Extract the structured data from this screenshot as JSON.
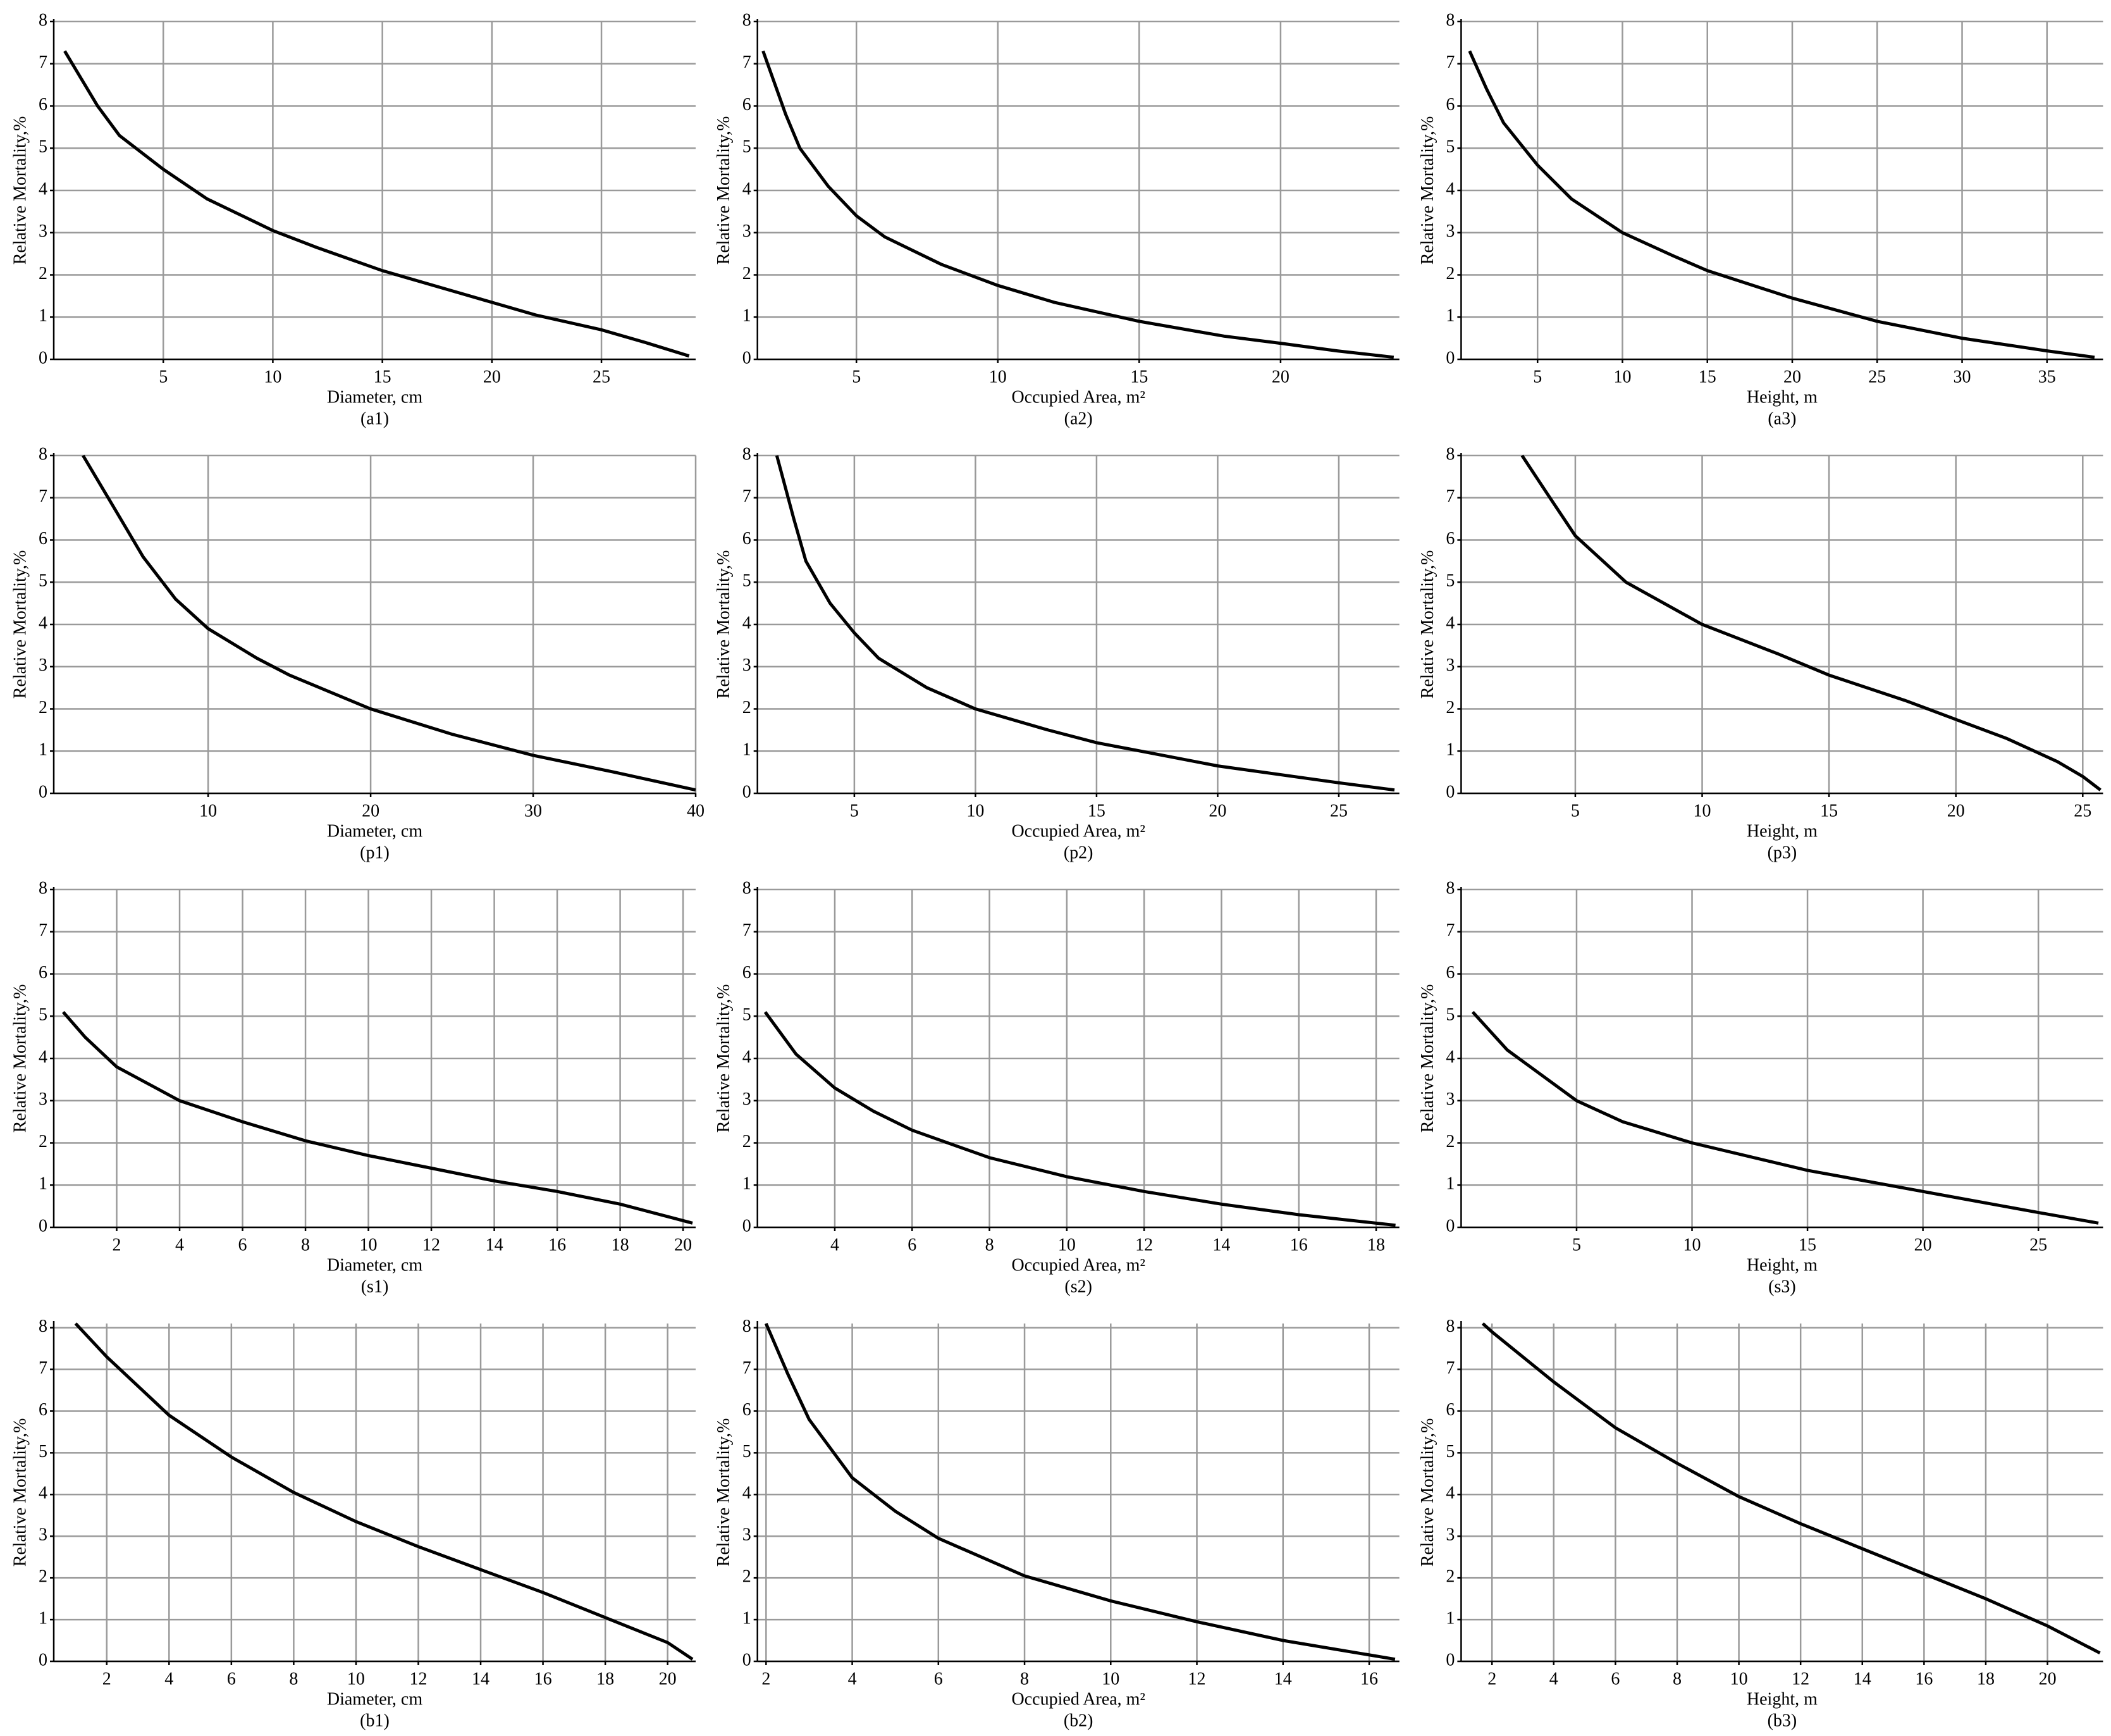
{
  "chart_data": [
    {
      "type": "line",
      "title": "(a1)",
      "x_label": "Diameter,  cm",
      "y_label": "Relative Mortality,%",
      "color": "#000000",
      "grid": true,
      "x": [
        0.5,
        2,
        3,
        5,
        7,
        10,
        12,
        15,
        18,
        20,
        22,
        25,
        27,
        29
      ],
      "values": [
        7.3,
        6.0,
        5.3,
        4.5,
        3.8,
        3.05,
        2.65,
        2.1,
        1.65,
        1.35,
        1.05,
        0.7,
        0.4,
        0.08
      ],
      "xlim": [
        0,
        29.3
      ],
      "ylim": [
        0,
        8
      ],
      "xticks": [
        5,
        10,
        15,
        20,
        25
      ],
      "yticks": [
        0,
        1,
        2,
        3,
        4,
        5,
        6,
        7,
        8
      ]
    },
    {
      "type": "line",
      "title": "(a2)",
      "x_label": "Occupied Area, m²",
      "y_label": "Relative Mortality,%",
      "color": "#000000",
      "grid": true,
      "x": [
        1.7,
        2.5,
        3,
        4,
        5,
        6,
        8,
        10,
        12,
        15,
        18,
        20,
        22,
        24
      ],
      "values": [
        7.3,
        5.8,
        5.0,
        4.1,
        3.4,
        2.9,
        2.25,
        1.75,
        1.35,
        0.9,
        0.55,
        0.38,
        0.2,
        0.05
      ],
      "xlim": [
        1.5,
        24.2
      ],
      "ylim": [
        0,
        8
      ],
      "xticks": [
        5,
        10,
        15,
        20
      ],
      "yticks": [
        0,
        1,
        2,
        3,
        4,
        5,
        6,
        7,
        8
      ]
    },
    {
      "type": "line",
      "title": "(a3)",
      "x_label": "Height,  m",
      "y_label": "Relative Mortality,%",
      "color": "#000000",
      "grid": true,
      "x": [
        1,
        2,
        3,
        5,
        7,
        10,
        13,
        15,
        20,
        25,
        30,
        35,
        37.8
      ],
      "values": [
        7.3,
        6.4,
        5.6,
        4.6,
        3.8,
        3.0,
        2.45,
        2.1,
        1.45,
        0.9,
        0.5,
        0.2,
        0.05
      ],
      "xlim": [
        0.5,
        38.3
      ],
      "ylim": [
        0,
        8
      ],
      "xticks": [
        5,
        10,
        15,
        20,
        25,
        30,
        35
      ],
      "yticks": [
        0,
        1,
        2,
        3,
        4,
        5,
        6,
        7,
        8
      ]
    },
    {
      "type": "line",
      "title": "(p1)",
      "x_label": "Diameter,  cm",
      "y_label": "Relative Mortality,%",
      "color": "#000000",
      "grid": true,
      "x": [
        2.3,
        4,
        6,
        8,
        10,
        13,
        15,
        20,
        25,
        30,
        35,
        40
      ],
      "values": [
        8.0,
        6.9,
        5.6,
        4.6,
        3.9,
        3.2,
        2.8,
        2.0,
        1.4,
        0.9,
        0.5,
        0.08
      ],
      "xlim": [
        0.5,
        40
      ],
      "ylim": [
        0,
        8
      ],
      "xticks": [
        10,
        20,
        30,
        40
      ],
      "yticks": [
        0,
        1,
        2,
        3,
        4,
        5,
        6,
        7,
        8
      ]
    },
    {
      "type": "line",
      "title": "(p2)",
      "x_label": "Occupied Area, m²",
      "y_label": "Relative Mortality,%",
      "color": "#000000",
      "grid": true,
      "x": [
        1.8,
        2.5,
        3,
        4,
        5,
        6,
        8,
        10,
        13,
        15,
        20,
        25,
        27.3
      ],
      "values": [
        8.0,
        6.5,
        5.5,
        4.5,
        3.8,
        3.2,
        2.5,
        2.0,
        1.5,
        1.2,
        0.65,
        0.25,
        0.08
      ],
      "xlim": [
        1,
        27.5
      ],
      "ylim": [
        0,
        8
      ],
      "xticks": [
        5,
        10,
        15,
        20,
        25
      ],
      "yticks": [
        0,
        1,
        2,
        3,
        4,
        5,
        6,
        7,
        8
      ]
    },
    {
      "type": "line",
      "title": "(p3)",
      "x_label": "Height,  m",
      "y_label": "Relative Mortality,%",
      "color": "#000000",
      "grid": true,
      "x": [
        2.9,
        4,
        5,
        7,
        10,
        13,
        15,
        18,
        20,
        22,
        24,
        25,
        25.7
      ],
      "values": [
        8.0,
        7.0,
        6.1,
        5.0,
        4.0,
        3.3,
        2.8,
        2.2,
        1.75,
        1.3,
        0.75,
        0.4,
        0.08
      ],
      "xlim": [
        0.5,
        25.8
      ],
      "ylim": [
        0,
        8
      ],
      "xticks": [
        5,
        10,
        15,
        20,
        25
      ],
      "yticks": [
        0,
        1,
        2,
        3,
        4,
        5,
        6,
        7,
        8
      ]
    },
    {
      "type": "line",
      "title": "(s1)",
      "x_label": "Diameter,  cm",
      "y_label": "Relative Mortality,%",
      "color": "#000000",
      "grid": true,
      "x": [
        0.3,
        1,
        2,
        4,
        6,
        8,
        10,
        12,
        14,
        16,
        18,
        20.3
      ],
      "values": [
        5.1,
        4.5,
        3.8,
        3.0,
        2.5,
        2.05,
        1.7,
        1.4,
        1.1,
        0.85,
        0.55,
        0.1
      ],
      "xlim": [
        0,
        20.4
      ],
      "ylim": [
        0,
        8
      ],
      "xticks": [
        2,
        4,
        6,
        8,
        10,
        12,
        14,
        16,
        18,
        20
      ],
      "yticks": [
        0,
        1,
        2,
        3,
        4,
        5,
        6,
        7,
        8
      ]
    },
    {
      "type": "line",
      "title": "(s2)",
      "x_label": "Occupied Area, m²",
      "y_label": "Relative Mortality,%",
      "color": "#000000",
      "grid": true,
      "x": [
        2.2,
        3,
        4,
        5,
        6,
        8,
        10,
        12,
        14,
        16,
        18.5
      ],
      "values": [
        5.1,
        4.1,
        3.3,
        2.75,
        2.3,
        1.65,
        1.2,
        0.85,
        0.55,
        0.3,
        0.05
      ],
      "xlim": [
        2,
        18.6
      ],
      "ylim": [
        0,
        8
      ],
      "xticks": [
        4,
        6,
        8,
        10,
        12,
        14,
        16,
        18
      ],
      "yticks": [
        0,
        1,
        2,
        3,
        4,
        5,
        6,
        7,
        8
      ]
    },
    {
      "type": "line",
      "title": "(s3)",
      "x_label": "Height,  m",
      "y_label": "Relative Mortality,%",
      "color": "#000000",
      "grid": true,
      "x": [
        0.5,
        2,
        5,
        7,
        10,
        15,
        20,
        25,
        27.6
      ],
      "values": [
        5.1,
        4.2,
        3.0,
        2.5,
        2.0,
        1.35,
        0.85,
        0.35,
        0.1
      ],
      "xlim": [
        0,
        27.8
      ],
      "ylim": [
        0,
        8
      ],
      "xticks": [
        5,
        10,
        15,
        20,
        25
      ],
      "yticks": [
        0,
        1,
        2,
        3,
        4,
        5,
        6,
        7,
        8
      ]
    },
    {
      "type": "line",
      "title": "(b1)",
      "x_label": "Diameter,  cm",
      "y_label": "Relative Mortality,%",
      "color": "#000000",
      "grid": true,
      "x": [
        1,
        2,
        4,
        6,
        8,
        10,
        12,
        14,
        16,
        18,
        20,
        20.8
      ],
      "values": [
        8.1,
        7.3,
        5.9,
        4.9,
        4.05,
        3.35,
        2.75,
        2.2,
        1.65,
        1.05,
        0.45,
        0.05
      ],
      "xlim": [
        0.3,
        20.9
      ],
      "ylim": [
        0,
        8.1
      ],
      "xticks": [
        2,
        4,
        6,
        8,
        10,
        12,
        14,
        16,
        18,
        20
      ],
      "yticks": [
        0,
        1,
        2,
        3,
        4,
        5,
        6,
        7,
        8
      ]
    },
    {
      "type": "line",
      "title": "(b2)",
      "x_label": "Occupied Area, m²",
      "y_label": "Relative Mortality,%",
      "color": "#000000",
      "grid": true,
      "x": [
        2,
        2.5,
        3,
        4,
        5,
        6,
        8,
        10,
        12,
        14,
        16.6
      ],
      "values": [
        8.1,
        6.9,
        5.8,
        4.4,
        3.6,
        2.95,
        2.05,
        1.45,
        0.95,
        0.5,
        0.05
      ],
      "xlim": [
        1.8,
        16.7
      ],
      "ylim": [
        0,
        8.1
      ],
      "xticks": [
        2,
        4,
        6,
        8,
        10,
        12,
        14,
        16
      ],
      "yticks": [
        0,
        1,
        2,
        3,
        4,
        5,
        6,
        7,
        8
      ]
    },
    {
      "type": "line",
      "title": "(b3)",
      "x_label": "Height,  m",
      "y_label": "Relative Mortality,%",
      "color": "#000000",
      "grid": true,
      "x": [
        1.7,
        2,
        4,
        6,
        8,
        10,
        12,
        14,
        16,
        18,
        20,
        21.7
      ],
      "values": [
        8.1,
        7.9,
        6.7,
        5.6,
        4.75,
        3.95,
        3.3,
        2.7,
        2.1,
        1.5,
        0.85,
        0.2
      ],
      "xlim": [
        1,
        21.8
      ],
      "ylim": [
        0,
        8.1
      ],
      "xticks": [
        2,
        4,
        6,
        8,
        10,
        12,
        14,
        16,
        18,
        20
      ],
      "yticks": [
        0,
        1,
        2,
        3,
        4,
        5,
        6,
        7,
        8
      ]
    }
  ]
}
